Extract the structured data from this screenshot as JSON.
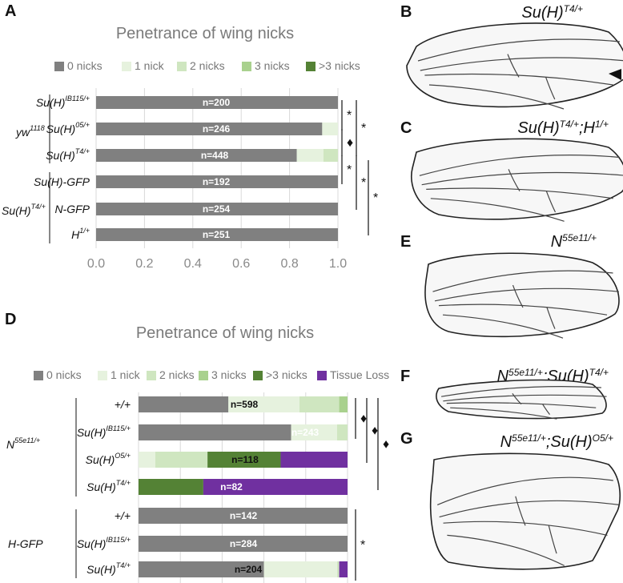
{
  "colors": {
    "c0": "#808080",
    "c1": "#e6f2de",
    "c2": "#cfe6c0",
    "c3": "#a9d18e",
    "c4": "#548235",
    "c5": "#7030a0",
    "grid": "#d9d9d9",
    "panel_bg": "#ffffff"
  },
  "chart_data": [
    {
      "panel": "A",
      "type": "bar",
      "orientation": "horizontal",
      "stacked": true,
      "title": "Penetrance of wing nicks",
      "legend": [
        "0 nicks",
        "1 nick",
        "2 nicks",
        "3 nicks",
        ">3 nicks"
      ],
      "legend_position": "top",
      "xlim": [
        0,
        1
      ],
      "xticks": [
        "0.0",
        "0.2",
        "0.4",
        "0.6",
        "0.8",
        "1.0"
      ],
      "grid": true,
      "group_labels": [
        {
          "base": "yw",
          "sup": "1118"
        },
        {
          "base": "Su(H)",
          "sup": "T4/+"
        }
      ],
      "rows": [
        {
          "label": "Su(H)",
          "sup": "IB115/+",
          "n": "n=200",
          "values": [
            1.0,
            0,
            0,
            0,
            0
          ]
        },
        {
          "label": "Su(H)",
          "sup": "05/+",
          "n": "n=246",
          "values": [
            0.935,
            0.065,
            0,
            0,
            0
          ]
        },
        {
          "label": "Su(H)",
          "sup": "T4/+",
          "n": "n=448",
          "values": [
            0.83,
            0.11,
            0.06,
            0,
            0
          ]
        },
        {
          "label": "Su(H)-GFP",
          "sup": "",
          "n": "n=192",
          "values": [
            1.0,
            0,
            0,
            0,
            0
          ]
        },
        {
          "label": "N-GFP",
          "sup": "",
          "n": "n=254",
          "values": [
            1.0,
            0,
            0,
            0,
            0
          ]
        },
        {
          "label": "H",
          "sup": "1/+",
          "n": "n=251",
          "values": [
            1.0,
            0,
            0,
            0,
            0
          ]
        }
      ],
      "significance": [
        "*",
        "*",
        "♦",
        "*",
        "*",
        "*"
      ]
    },
    {
      "panel": "D",
      "type": "bar",
      "orientation": "horizontal",
      "stacked": true,
      "title": "Penetrance of wing nicks",
      "legend": [
        "0 nicks",
        "1 nick",
        "2 nicks",
        "3 nicks",
        ">3 nicks",
        "Tissue Loss"
      ],
      "legend_position": "top",
      "xlim": [
        0,
        1
      ],
      "grid": true,
      "group_labels": [
        {
          "base": "N",
          "sup": "55e11/+"
        },
        {
          "base": "H-GFP",
          "sup": ""
        }
      ],
      "rows": [
        {
          "label": "+/+",
          "sup": "",
          "n": "n=598",
          "values": [
            0.43,
            0.34,
            0.19,
            0.04,
            0,
            0
          ]
        },
        {
          "label": "Su(H)",
          "sup": "IB115/+",
          "n": "n=243",
          "values": [
            0.73,
            0.22,
            0.05,
            0,
            0,
            0
          ]
        },
        {
          "label": "Su(H)",
          "sup": "O5/+",
          "n": "n=118",
          "values": [
            0,
            0.08,
            0.25,
            0,
            0.35,
            0.32
          ]
        },
        {
          "label": "Su(H)",
          "sup": "T4/+",
          "n": "n=82",
          "values": [
            0,
            0,
            0,
            0,
            0.31,
            0.69
          ]
        },
        {
          "label": "+/+",
          "sup": "",
          "n": "n=142",
          "values": [
            1.0,
            0,
            0,
            0,
            0,
            0
          ]
        },
        {
          "label": "Su(H)",
          "sup": "IB115/+",
          "n": "n=284",
          "values": [
            1.0,
            0,
            0,
            0,
            0,
            0
          ]
        },
        {
          "label": "Su(H)",
          "sup": "T4/+",
          "n": "n=204",
          "values": [
            0.6,
            0.35,
            0.01,
            0,
            0,
            0.04
          ]
        }
      ],
      "significance": [
        "♦",
        "♦",
        "♦",
        "*"
      ]
    }
  ],
  "wings": [
    {
      "panel": "B",
      "parts": [
        {
          "base": "Su(H)",
          "sup": "T4/+"
        }
      ]
    },
    {
      "panel": "C",
      "parts": [
        {
          "base": "Su(H)",
          "sup": "T4/+"
        },
        {
          "base": ";H",
          "sup": "1/+"
        }
      ]
    },
    {
      "panel": "E",
      "parts": [
        {
          "base": "N",
          "sup": "55e11/+"
        }
      ]
    },
    {
      "panel": "F",
      "parts": [
        {
          "base": "N",
          "sup": "55e11/+"
        },
        {
          "base": ";Su(H)",
          "sup": "T4/+"
        }
      ]
    },
    {
      "panel": "G",
      "parts": [
        {
          "base": "N",
          "sup": "55e11/+"
        },
        {
          "base": ";Su(H)",
          "sup": "O5/+"
        }
      ]
    }
  ]
}
